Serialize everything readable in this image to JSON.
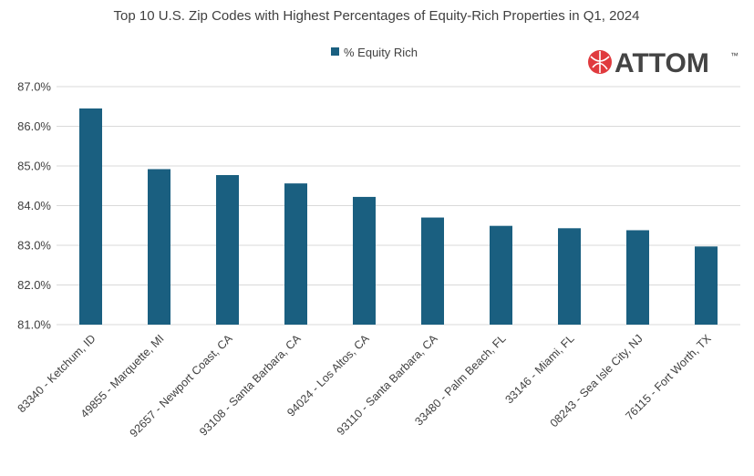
{
  "chart_data": {
    "type": "bar",
    "title": "Top 10 U.S. Zip Codes with Highest Percentages of Equity-Rich Properties in Q1, 2024",
    "series": [
      {
        "name": "% Equity Rich",
        "color": "#1a5f80",
        "values": [
          86.45,
          84.92,
          84.77,
          84.56,
          84.22,
          83.7,
          83.49,
          83.43,
          83.38,
          82.97
        ]
      }
    ],
    "categories": [
      "83340 - Ketchum, ID",
      "49855 - Marquette, MI",
      "92657 - Newport Coast, CA",
      "93108 - Santa Barbara, CA",
      "94024 - Los Altos, CA",
      "93110 - Santa Barbara, CA",
      "33480 - Palm Beach, FL",
      "33146 - Miami, FL",
      "08243 - Sea Isle City, NJ",
      "76115 - Fort Worth, TX"
    ],
    "ylim": [
      81,
      87
    ],
    "yticks": [
      "81.0%",
      "82.0%",
      "83.0%",
      "84.0%",
      "85.0%",
      "86.0%",
      "87.0%"
    ],
    "grid": true,
    "legend": "top-center"
  },
  "logo": {
    "text": "ATTOM",
    "tm": "™",
    "color": "#e03a3e"
  }
}
